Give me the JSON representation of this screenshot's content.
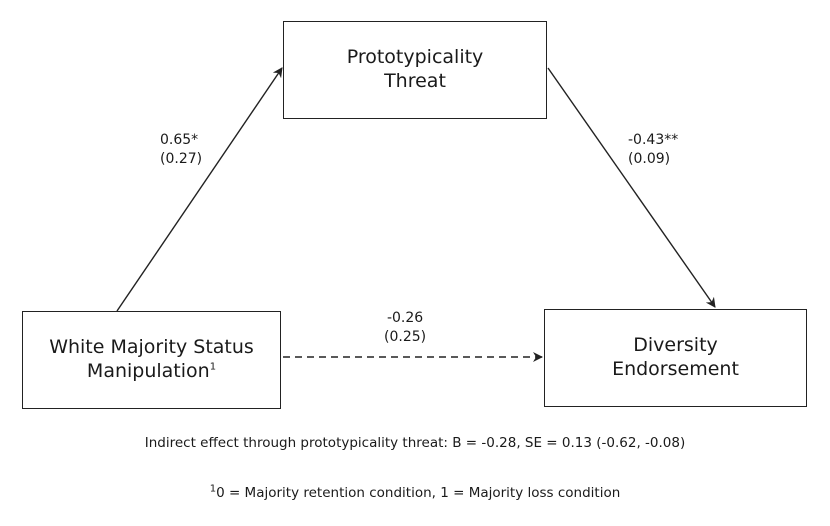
{
  "nodes": {
    "threat": {
      "line1": "Prototypicality",
      "line2": "Threat"
    },
    "status": {
      "line1": "White Majority Status",
      "line2": "Manipulation",
      "sup": "1"
    },
    "diversity": {
      "line1": "Diversity",
      "line2": "Endorsement"
    }
  },
  "paths": {
    "a": {
      "coef": "0.65*",
      "se": "(0.27)"
    },
    "b": {
      "coef": "-0.43**",
      "se": "(0.09)"
    },
    "c": {
      "coef": "-0.26",
      "se": "(0.25)"
    }
  },
  "notes": {
    "indirect": "Indirect effect through prototypicality threat: B = -0.28, SE = 0.13 (-0.62, -0.08)",
    "footnote_sup": "1",
    "footnote": "0 = Majority retention condition, 1 = Majority loss condition"
  }
}
